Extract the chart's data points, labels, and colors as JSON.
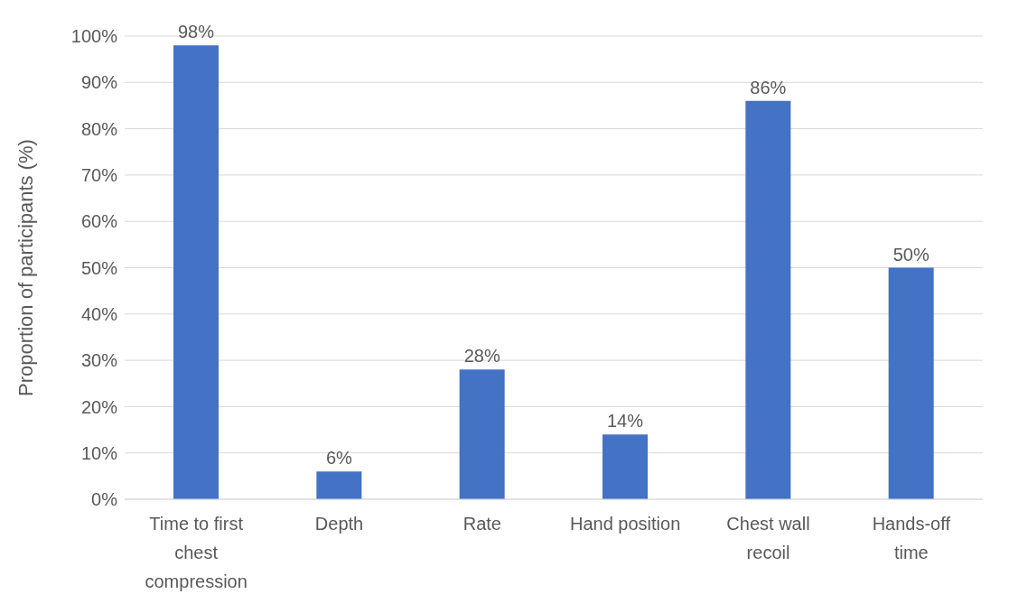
{
  "chart_data": {
    "type": "bar",
    "ylabel": "Proportion  of participants  (%)",
    "categories": [
      "Time to first chest compression",
      "Depth",
      "Rate",
      "Hand position",
      "Chest wall recoil",
      "Hands-off time"
    ],
    "values": [
      98,
      6,
      28,
      14,
      86,
      50
    ],
    "color": "#4472c4",
    "value_labels": [
      "98%",
      "6%",
      "28%",
      "14%",
      "86%",
      "50%"
    ],
    "ylim": [
      0,
      100
    ],
    "yticks": [
      {
        "value": 0,
        "label": "0%"
      },
      {
        "value": 10,
        "label": "10%"
      },
      {
        "value": 20,
        "label": "20%"
      },
      {
        "value": 30,
        "label": "30%"
      },
      {
        "value": 40,
        "label": "40%"
      },
      {
        "value": 50,
        "label": "50%"
      },
      {
        "value": 60,
        "label": "60%"
      },
      {
        "value": 70,
        "label": "70%"
      },
      {
        "value": 80,
        "label": "80%"
      },
      {
        "value": 90,
        "label": "90%"
      },
      {
        "value": 100,
        "label": "100%"
      }
    ],
    "grid": "y"
  }
}
